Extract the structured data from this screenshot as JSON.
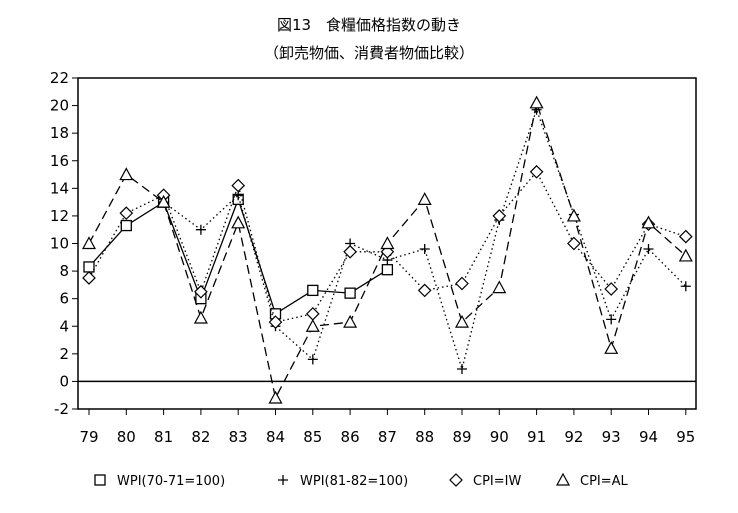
{
  "chart_data": {
    "type": "line",
    "title": "図13　食糧価格指数の動き",
    "subtitle": "（卸売物価、消費者物価比較）",
    "categories": [
      "79",
      "80",
      "81",
      "82",
      "83",
      "84",
      "85",
      "86",
      "87",
      "88",
      "89",
      "90",
      "91",
      "92",
      "93",
      "94",
      "95"
    ],
    "ylim": [
      -2,
      22
    ],
    "yticks": [
      -2,
      0,
      2,
      4,
      6,
      8,
      10,
      12,
      14,
      16,
      18,
      20,
      22
    ],
    "grid": false,
    "legend_position": "bottom",
    "series": [
      {
        "name": "WPI(70-71=100)",
        "marker": "square",
        "line": "solid",
        "values": [
          8.3,
          11.3,
          13.0,
          6.0,
          13.2,
          4.9,
          6.6,
          6.4,
          8.1,
          null,
          null,
          null,
          null,
          null,
          null,
          null,
          null
        ]
      },
      {
        "name": "WPI(81-82=100)",
        "marker": "plus",
        "line": "dotted",
        "values": [
          null,
          null,
          13.0,
          11.0,
          13.5,
          4.0,
          1.6,
          10.0,
          8.8,
          9.6,
          0.9,
          11.7,
          19.7,
          12.1,
          4.5,
          9.6,
          6.9
        ]
      },
      {
        "name": "CPI=IW",
        "marker": "diamond",
        "line": "dotted",
        "values": [
          7.5,
          12.2,
          13.5,
          6.5,
          14.2,
          4.3,
          4.9,
          9.4,
          9.4,
          6.6,
          7.1,
          12.0,
          15.2,
          10.0,
          6.7,
          11.4,
          10.5
        ]
      },
      {
        "name": "CPI=AL",
        "marker": "triangle",
        "line": "dashed",
        "values": [
          10.0,
          15.0,
          13.0,
          4.6,
          11.5,
          -1.2,
          4.0,
          4.3,
          10.0,
          13.2,
          4.3,
          6.8,
          20.2,
          12.0,
          2.4,
          11.5,
          9.1
        ]
      }
    ]
  }
}
